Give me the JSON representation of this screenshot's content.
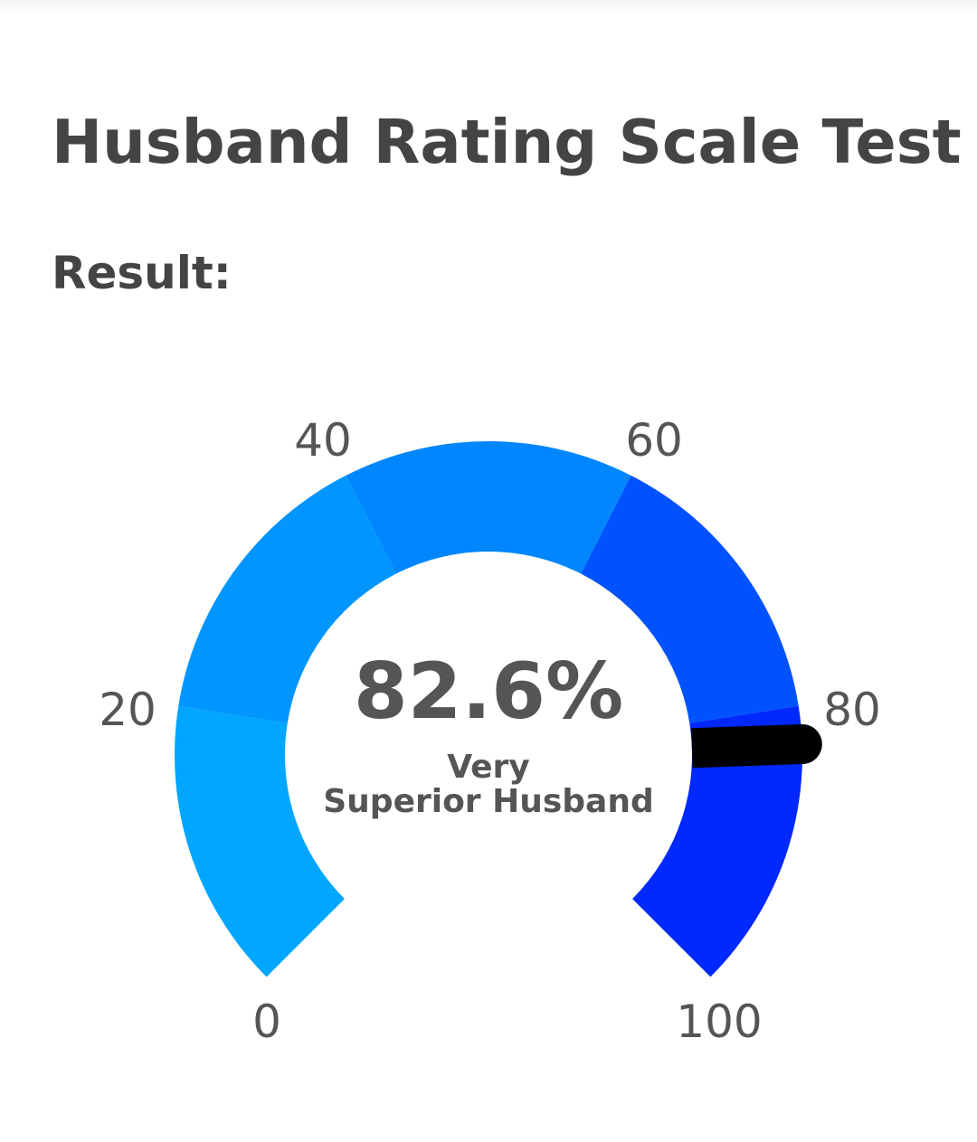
{
  "title": "Husband Rating Scale Test",
  "result_label": "Result:",
  "gauge": {
    "value": 82.6,
    "value_text": "82.6%",
    "category_line1": "Very",
    "category_line2": "Superior Husband",
    "min": 0,
    "max": 100,
    "ticks": [
      "0",
      "20",
      "40",
      "60",
      "80",
      "100"
    ],
    "segments": [
      {
        "from": 0,
        "to": 20,
        "color": "#00a6ff"
      },
      {
        "from": 20,
        "to": 40,
        "color": "#0095ff"
      },
      {
        "from": 40,
        "to": 60,
        "color": "#0086ff"
      },
      {
        "from": 60,
        "to": 80,
        "color": "#0052ff"
      },
      {
        "from": 80,
        "to": 100,
        "color": "#0028ff"
      }
    ],
    "needle_color": "#000000"
  }
}
